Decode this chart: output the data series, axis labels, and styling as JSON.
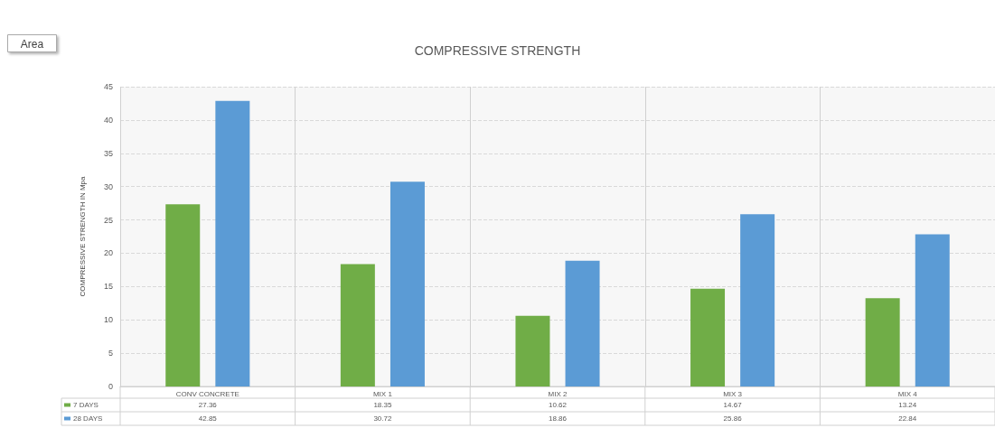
{
  "chart_data": {
    "type": "bar",
    "title": "COMPRESSIVE STRENGTH",
    "ylabel": "COMPRESSIVE STRENGTH IN Mpa",
    "categories": [
      "CONV CONCRETE",
      "MIX 1",
      "MIX 2",
      "MIX 3",
      "MIX 4"
    ],
    "series": [
      {
        "name": "7 DAYS",
        "color": "#70ad47",
        "values": [
          27.36,
          18.35,
          10.62,
          14.67,
          13.24
        ]
      },
      {
        "name": "28 DAYS",
        "color": "#5b9bd5",
        "values": [
          42.85,
          30.72,
          18.86,
          25.86,
          22.84
        ]
      }
    ],
    "ylim": [
      0,
      45
    ],
    "yticks": [
      0,
      5,
      10,
      15,
      20,
      25,
      30,
      35,
      40,
      45
    ],
    "grid": true,
    "legend": "bottom",
    "data_labels": true,
    "annotations": [
      "Area"
    ]
  }
}
